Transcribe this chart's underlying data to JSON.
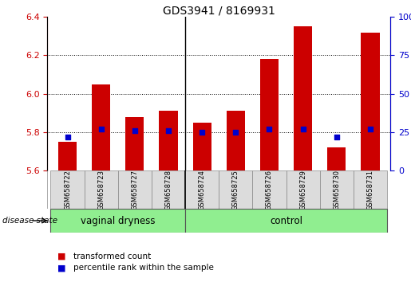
{
  "title": "GDS3941 / 8169931",
  "samples": [
    "GSM658722",
    "GSM658723",
    "GSM658727",
    "GSM658728",
    "GSM658724",
    "GSM658725",
    "GSM658726",
    "GSM658729",
    "GSM658730",
    "GSM658731"
  ],
  "transformed_count": [
    5.75,
    6.05,
    5.88,
    5.91,
    5.85,
    5.91,
    6.18,
    6.35,
    5.72,
    6.32
  ],
  "percentile_rank": [
    22,
    27,
    26,
    26,
    25,
    25,
    27,
    27,
    22,
    27
  ],
  "bar_bottom": 5.6,
  "ylim_left": [
    5.6,
    6.4
  ],
  "ylim_right": [
    0,
    100
  ],
  "yticks_left": [
    5.6,
    5.8,
    6.0,
    6.2,
    6.4
  ],
  "yticks_right": [
    0,
    25,
    50,
    75,
    100
  ],
  "bar_color": "#CC0000",
  "percentile_color": "#0000CC",
  "tick_label_color_left": "#CC0000",
  "tick_label_color_right": "#0000CC",
  "disease_state_label": "disease state",
  "legend_items": [
    "transformed count",
    "percentile rank within the sample"
  ],
  "vaginal_dryness_label": "vaginal dryness",
  "control_label": "control",
  "vaginal_dryness_count": 4,
  "control_count": 6,
  "group_bg_color": "#90EE90",
  "sample_box_color": "#DCDCDC"
}
